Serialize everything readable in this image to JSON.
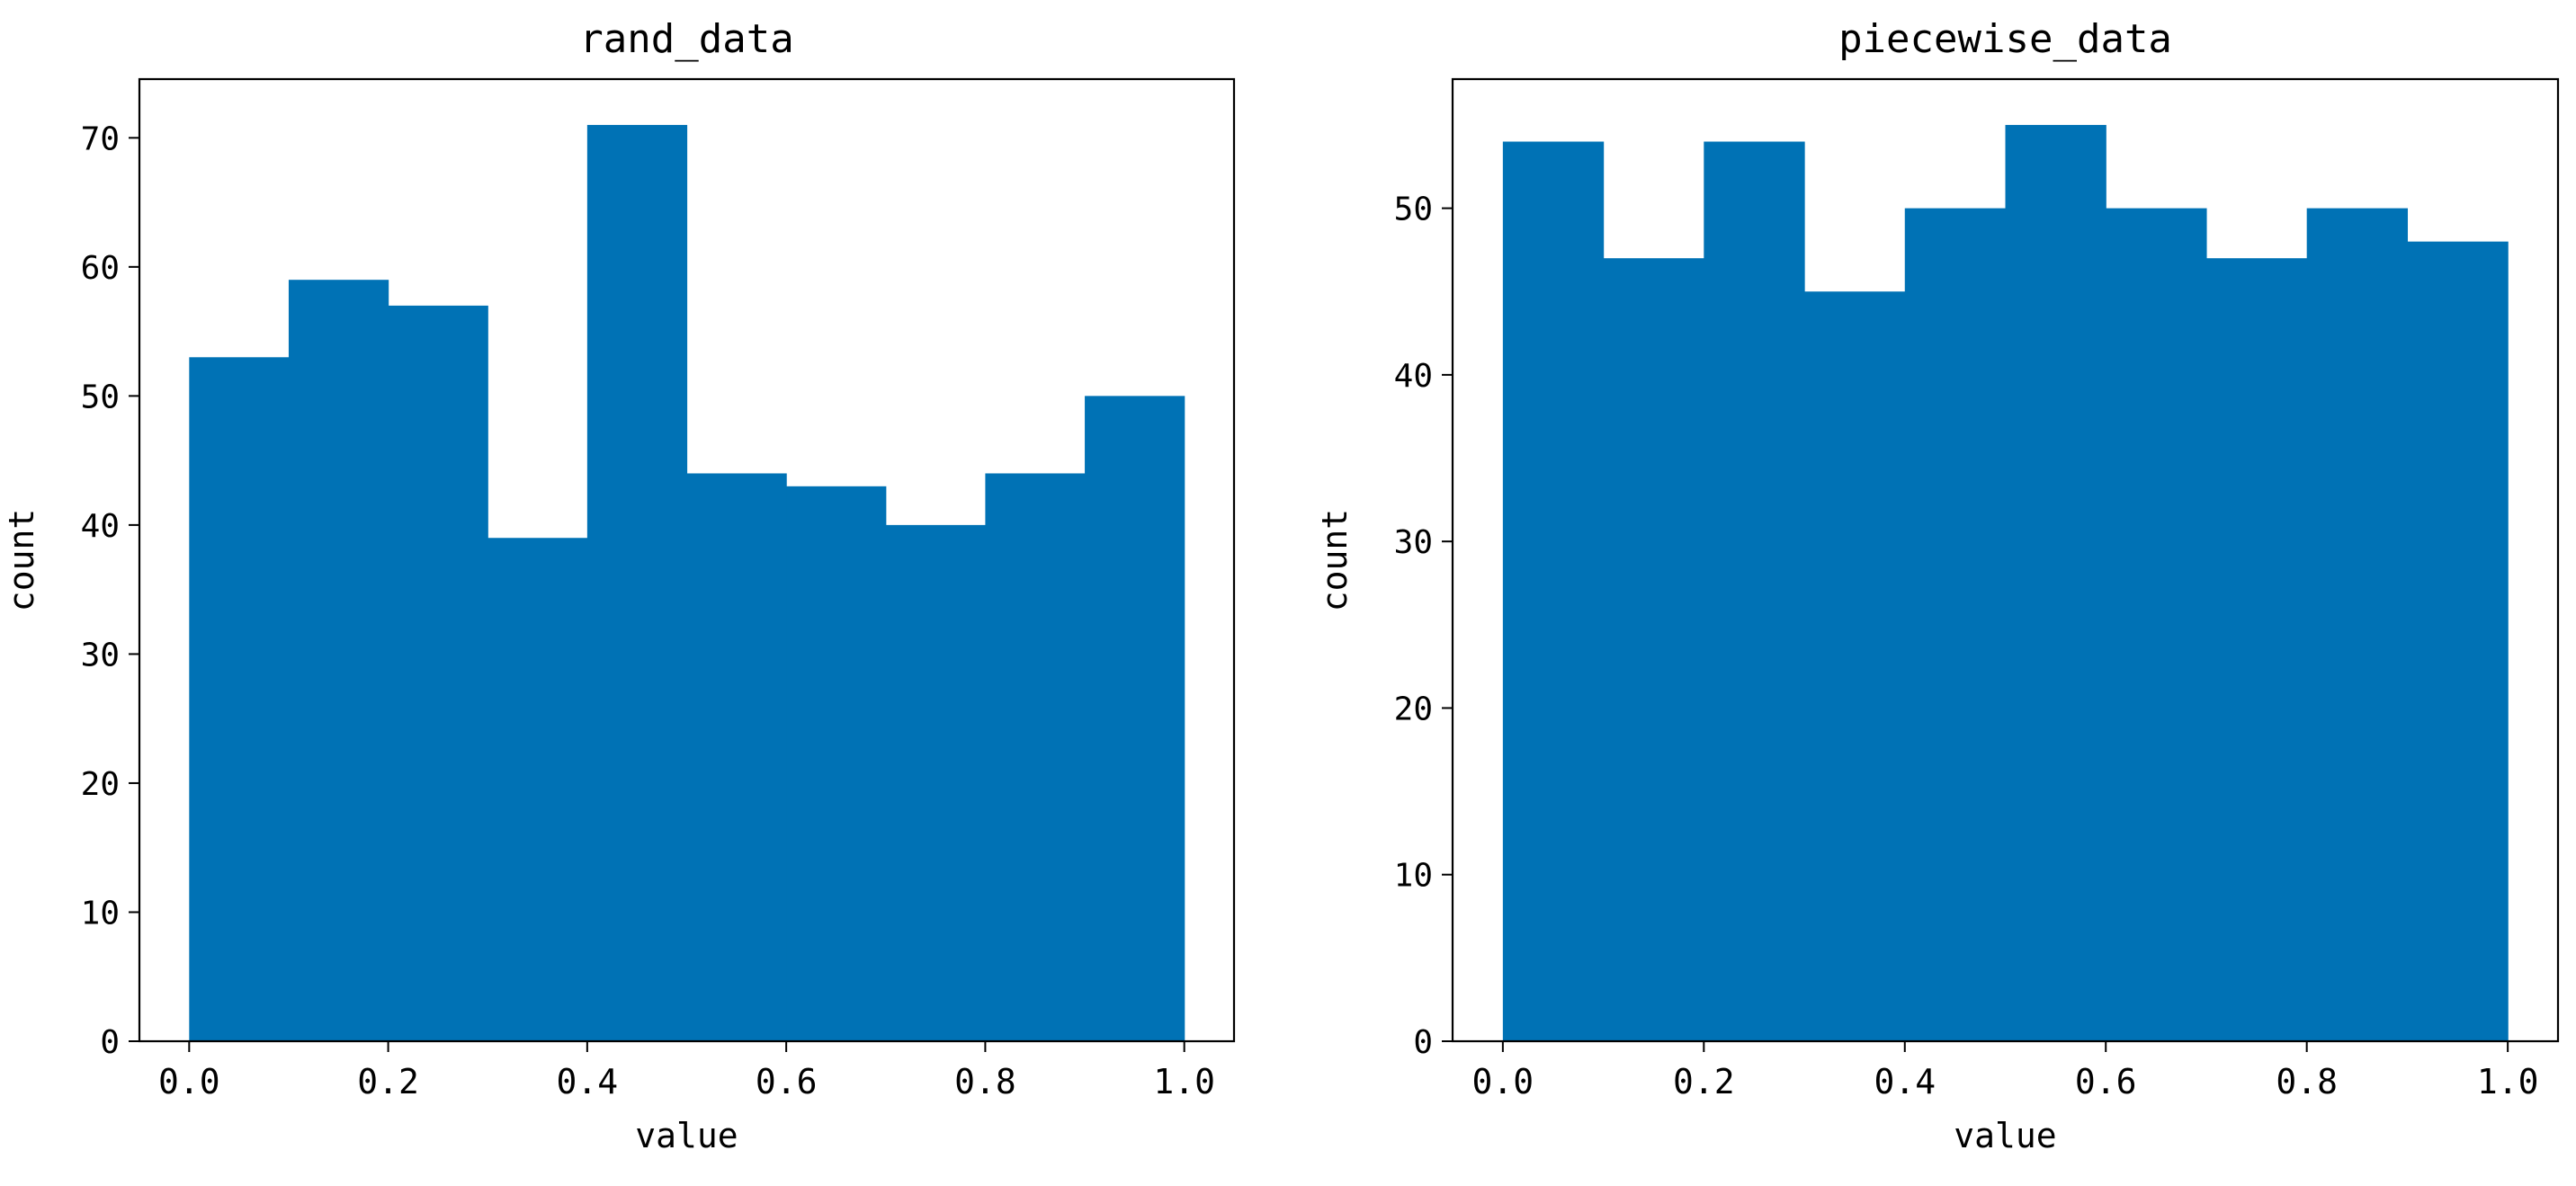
{
  "chart_data": [
    {
      "type": "bar",
      "title": "rand_data",
      "xlabel": "value",
      "ylabel": "count",
      "bin_edges": [
        0.0,
        0.1,
        0.2,
        0.3,
        0.4,
        0.5,
        0.6,
        0.7,
        0.8,
        0.9,
        1.0
      ],
      "values": [
        53,
        59,
        57,
        39,
        71,
        44,
        43,
        40,
        44,
        50
      ],
      "xlim": [
        -0.05,
        1.05
      ],
      "ylim": [
        0,
        74.55
      ],
      "xticks": [
        0.0,
        0.2,
        0.4,
        0.6,
        0.8,
        1.0
      ],
      "xtick_labels": [
        "0.0",
        "0.2",
        "0.4",
        "0.6",
        "0.8",
        "1.0"
      ],
      "yticks": [
        0,
        10,
        20,
        30,
        40,
        50,
        60,
        70
      ],
      "ytick_labels": [
        "0",
        "10",
        "20",
        "30",
        "40",
        "50",
        "60",
        "70"
      ],
      "grid": false,
      "legend": false,
      "bar_color": "#0072B5"
    },
    {
      "type": "bar",
      "title": "piecewise_data",
      "xlabel": "value",
      "ylabel": "count",
      "bin_edges": [
        0.0,
        0.1,
        0.2,
        0.3,
        0.4,
        0.5,
        0.6,
        0.7,
        0.8,
        0.9,
        1.0
      ],
      "values": [
        54,
        47,
        54,
        45,
        50,
        55,
        50,
        47,
        50,
        48
      ],
      "xlim": [
        -0.05,
        1.05
      ],
      "ylim": [
        0,
        57.75
      ],
      "xticks": [
        0.0,
        0.2,
        0.4,
        0.6,
        0.8,
        1.0
      ],
      "xtick_labels": [
        "0.0",
        "0.2",
        "0.4",
        "0.6",
        "0.8",
        "1.0"
      ],
      "yticks": [
        0,
        10,
        20,
        30,
        40,
        50
      ],
      "ytick_labels": [
        "0",
        "10",
        "20",
        "30",
        "40",
        "50"
      ],
      "grid": false,
      "legend": false,
      "bar_color": "#0072B5"
    }
  ]
}
